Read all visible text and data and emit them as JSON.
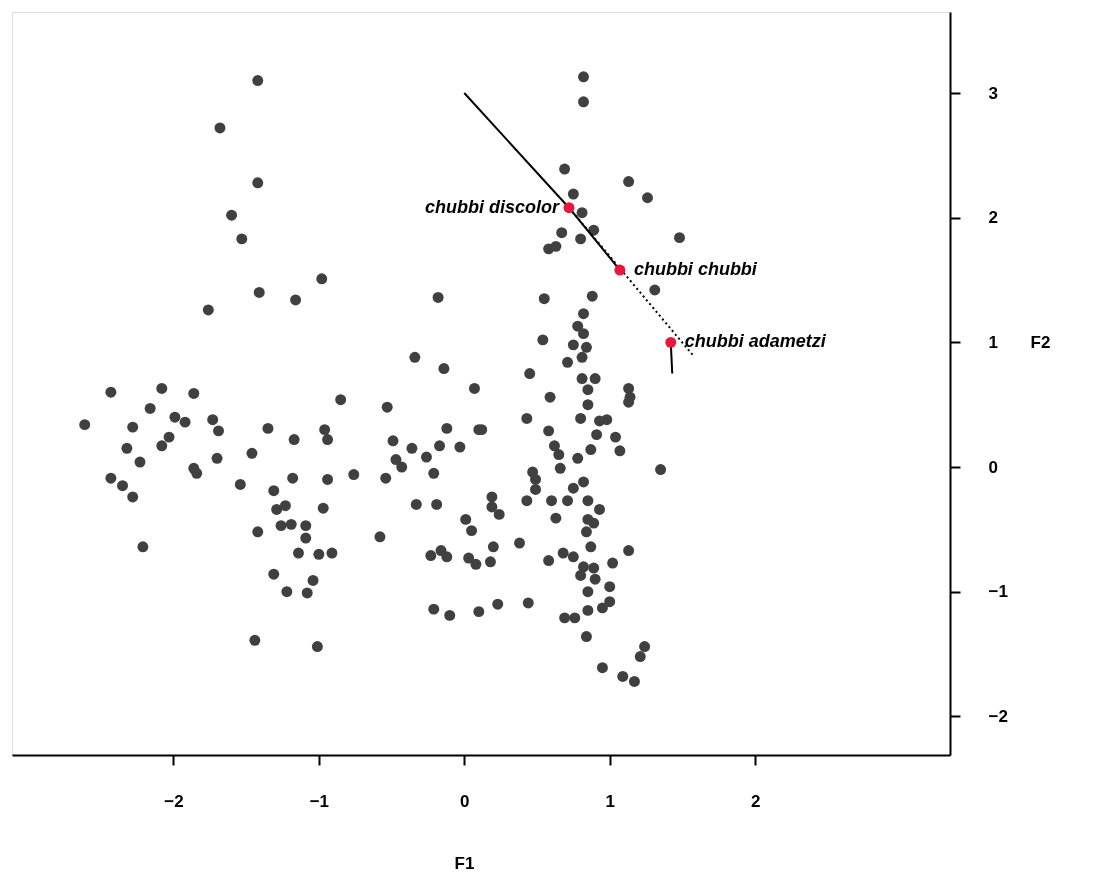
{
  "chart_data": {
    "type": "scatter",
    "xlabel": "F1",
    "ylabel": "F2",
    "xlim": [
      -3.11,
      3.34
    ],
    "ylim": [
      -2.31,
      3.65
    ],
    "xticks": [
      -2,
      -1,
      0,
      1,
      2
    ],
    "yticks": [
      -2,
      -1,
      0,
      1,
      2,
      3
    ],
    "grid": false,
    "marker": "circle",
    "series": [
      {
        "color": "#404040",
        "x": [
          -1.42,
          -1.68,
          -1.42,
          -1.6,
          -1.53,
          -0.98,
          -1.41,
          -1.16,
          -1.76,
          -0.18,
          -0.34,
          -0.14,
          0.07,
          -2.43,
          -2.08,
          -1.86,
          -2.16,
          -0.85,
          -0.53,
          -2.61,
          -2.28,
          -1.99,
          -1.92,
          -1.73,
          -1.69,
          -2.32,
          -2.03,
          -2.08,
          -2.23,
          -1.7,
          -1.86,
          -1.84,
          -2.43,
          -2.35,
          -2.28,
          -1.46,
          -1.35,
          -1.17,
          -0.96,
          -0.94,
          -1.54,
          -1.18,
          -0.94,
          -0.76,
          -1.31,
          -1.29,
          -1.23,
          -1.26,
          -1.19,
          -1.09,
          -1.09,
          -0.97,
          -1.42,
          -1.14,
          -1.0,
          -0.91,
          -1.31,
          -1.04,
          -1.22,
          -1.08,
          -2.21,
          -1.44,
          -1.01,
          -0.54,
          -0.49,
          -0.36,
          -0.26,
          -0.17,
          -0.03,
          -0.12,
          0.1,
          -0.47,
          -0.43,
          -0.21,
          -0.33,
          -0.19,
          -0.58,
          0.01,
          0.05,
          -0.23,
          -0.16,
          -0.12,
          0.03,
          0.08,
          -0.21,
          -0.1,
          0.1,
          0.82,
          0.82,
          0.69,
          1.13,
          0.75,
          1.26,
          0.81,
          0.67,
          0.8,
          0.89,
          1.48,
          0.58,
          0.63,
          0.55,
          0.88,
          1.31,
          0.82,
          0.78,
          0.82,
          0.54,
          0.75,
          0.84,
          0.81,
          0.71,
          0.45,
          0.81,
          0.9,
          0.85,
          1.13,
          1.14,
          0.59,
          0.85,
          0.43,
          0.8,
          0.93,
          0.98,
          1.13,
          0.12,
          0.58,
          0.91,
          1.04,
          0.62,
          0.65,
          0.87,
          1.07,
          0.78,
          0.66,
          0.47,
          0.49,
          0.49,
          1.35,
          0.82,
          0.75,
          0.6,
          0.71,
          0.43,
          0.85,
          0.93,
          0.19,
          0.19,
          0.24,
          0.63,
          0.85,
          0.89,
          0.84,
          0.38,
          0.2,
          0.87,
          1.13,
          0.18,
          0.58,
          0.68,
          0.75,
          0.82,
          0.89,
          0.8,
          0.9,
          1.02,
          1.0,
          0.85,
          1.0,
          0.95,
          0.85,
          0.23,
          0.44,
          0.69,
          0.76,
          0.84,
          1.24,
          1.21,
          0.95,
          1.09,
          1.17
        ],
        "values": [
          3.1,
          2.72,
          2.28,
          2.02,
          1.83,
          1.51,
          1.4,
          1.34,
          1.26,
          1.36,
          0.88,
          0.79,
          0.63,
          0.6,
          0.63,
          0.59,
          0.47,
          0.54,
          0.48,
          0.34,
          0.32,
          0.4,
          0.36,
          0.38,
          0.29,
          0.15,
          0.24,
          0.17,
          0.04,
          0.07,
          -0.01,
          -0.05,
          -0.09,
          -0.15,
          -0.24,
          0.11,
          0.31,
          0.22,
          0.3,
          0.22,
          -0.14,
          -0.09,
          -0.1,
          -0.06,
          -0.19,
          -0.34,
          -0.31,
          -0.47,
          -0.46,
          -0.47,
          -0.57,
          -0.33,
          -0.52,
          -0.69,
          -0.7,
          -0.69,
          -0.86,
          -0.91,
          -1.0,
          -1.01,
          -0.64,
          -1.39,
          -1.44,
          -0.09,
          0.21,
          0.15,
          0.08,
          0.17,
          0.16,
          0.31,
          0.3,
          0.06,
          0.0,
          -0.05,
          -0.3,
          -0.3,
          -0.56,
          -0.42,
          -0.51,
          -0.71,
          -0.67,
          -0.72,
          -0.73,
          -0.78,
          -1.14,
          -1.19,
          -1.16,
          3.13,
          2.93,
          2.39,
          2.29,
          2.19,
          2.16,
          2.04,
          1.88,
          1.83,
          1.9,
          1.84,
          1.75,
          1.77,
          1.35,
          1.37,
          1.42,
          1.23,
          1.13,
          1.07,
          1.02,
          0.98,
          0.96,
          0.88,
          0.84,
          0.75,
          0.71,
          0.71,
          0.62,
          0.63,
          0.56,
          0.56,
          0.5,
          0.39,
          0.39,
          0.37,
          0.38,
          0.52,
          0.3,
          0.29,
          0.26,
          0.24,
          0.17,
          0.1,
          0.14,
          0.13,
          0.07,
          -0.01,
          -0.04,
          -0.1,
          -0.18,
          -0.02,
          -0.12,
          -0.17,
          -0.27,
          -0.27,
          -0.27,
          -0.27,
          -0.34,
          -0.24,
          -0.32,
          -0.38,
          -0.41,
          -0.42,
          -0.45,
          -0.52,
          -0.61,
          -0.64,
          -0.64,
          -0.67,
          -0.76,
          -0.75,
          -0.69,
          -0.72,
          -0.8,
          -0.81,
          -0.87,
          -0.9,
          -0.77,
          -0.96,
          -1.0,
          -1.08,
          -1.13,
          -1.15,
          -1.1,
          -1.09,
          -1.21,
          -1.21,
          -1.36,
          -1.44,
          -1.52,
          -1.61,
          -1.68,
          -1.72
        ]
      },
      {
        "type": "line",
        "color": "#000000",
        "line_style": "solid",
        "marker": "none",
        "x": [
          0,
          0.72,
          1.07
        ],
        "values": [
          3.0,
          2.08,
          1.58
        ]
      },
      {
        "type": "line",
        "color": "#000000",
        "line_style": "dotted",
        "marker": "none",
        "x": [
          0.72,
          1.57
        ],
        "values": [
          2.08,
          0.9
        ]
      },
      {
        "type": "line",
        "color": "#000000",
        "line_style": "solid",
        "marker": "none",
        "x": [
          1.42,
          1.43
        ],
        "values": [
          1.0,
          0.75
        ]
      },
      {
        "type": "scatter",
        "color": "#e8173c",
        "x": [
          0.72,
          1.07,
          1.42
        ],
        "values": [
          2.08,
          1.58,
          1.0
        ]
      }
    ],
    "annotations": [
      {
        "text": "chubbi discolor",
        "x": 0.72,
        "y": 2.08
      },
      {
        "text": "chubbi chubbi",
        "x": 1.07,
        "y": 1.58
      },
      {
        "text": "chubbi adametzi",
        "x": 1.42,
        "y": 1.0
      }
    ]
  }
}
